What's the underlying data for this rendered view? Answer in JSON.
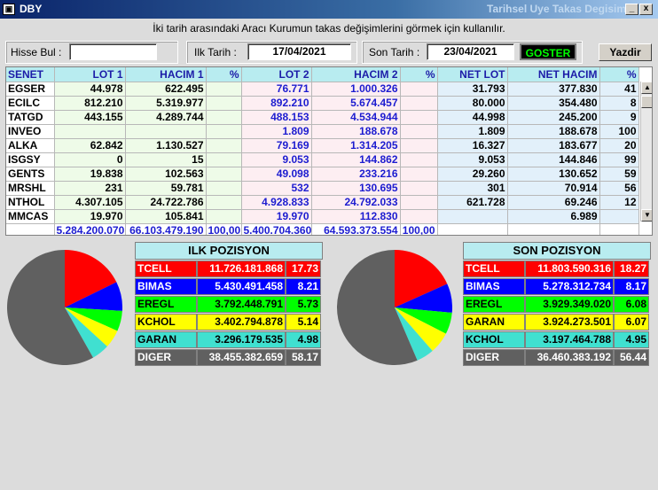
{
  "window": {
    "icon": "app-icon",
    "title": "DBY",
    "right_title": "Tarihsel Uye Takas Degisim",
    "minimize_label": "_",
    "close_label": "x"
  },
  "info_text": "İki tarih arasındaki  Aracı Kurumun takas değişimlerini görmek için kullanılır.",
  "filters": {
    "hisse_label": "Hisse Bul :",
    "hisse_value": "",
    "ilk_label": "Ilk Tarih :",
    "ilk_value": "17/04/2021",
    "son_label": "Son Tarih :",
    "son_value": "23/04/2021",
    "goster_label": "GOSTER",
    "yazdir_label": "Yazdir"
  },
  "grid": {
    "headers": [
      "SENET",
      "LOT 1",
      "HACIM 1",
      "%",
      "LOT 2",
      "HACIM 2",
      "%",
      "NET LOT",
      "NET HACIM",
      "%"
    ],
    "rows": [
      [
        "EGSER",
        "44.978",
        "622.495",
        "",
        "76.771",
        "1.000.326",
        "",
        "31.793",
        "377.830",
        "41"
      ],
      [
        "ECILC",
        "812.210",
        "5.319.977",
        "",
        "892.210",
        "5.674.457",
        "",
        "80.000",
        "354.480",
        "8"
      ],
      [
        "TATGD",
        "443.155",
        "4.289.744",
        "",
        "488.153",
        "4.534.944",
        "",
        "44.998",
        "245.200",
        "9"
      ],
      [
        "INVEO",
        "",
        "",
        "",
        "1.809",
        "188.678",
        "",
        "1.809",
        "188.678",
        "100"
      ],
      [
        "ALKA",
        "62.842",
        "1.130.527",
        "",
        "79.169",
        "1.314.205",
        "",
        "16.327",
        "183.677",
        "20"
      ],
      [
        "ISGSY",
        "0",
        "15",
        "",
        "9.053",
        "144.862",
        "",
        "9.053",
        "144.846",
        "99"
      ],
      [
        "GENTS",
        "19.838",
        "102.563",
        "",
        "49.098",
        "233.216",
        "",
        "29.260",
        "130.652",
        "59"
      ],
      [
        "MRSHL",
        "231",
        "59.781",
        "",
        "532",
        "130.695",
        "",
        "301",
        "70.914",
        "56"
      ],
      [
        "NTHOL",
        "4.307.105",
        "24.722.786",
        "",
        "4.928.833",
        "24.792.033",
        "",
        "621.728",
        "69.246",
        "12"
      ],
      [
        "MMCAS",
        "19.970",
        "105.841",
        "",
        "19.970",
        "112.830",
        "",
        "",
        "6.989",
        ""
      ]
    ],
    "totals": [
      "",
      "5.284.200.070",
      "66.103.479.190",
      "100,00",
      "5.400.704.360",
      "64.593.373.554",
      "100,00",
      "",
      "",
      ""
    ]
  },
  "ilk_pozisyon": {
    "title": "ILK POZISYON",
    "rows": [
      {
        "name": "TCELL",
        "value": "11.726.181.868",
        "pct": "17.73",
        "color": "#ff0000",
        "text": "#ffffff"
      },
      {
        "name": "BIMAS",
        "value": "5.430.491.458",
        "pct": "8.21",
        "color": "#0000ff",
        "text": "#ffffff"
      },
      {
        "name": "EREGL",
        "value": "3.792.448.791",
        "pct": "5.73",
        "color": "#00ff00",
        "text": "#000000"
      },
      {
        "name": "KCHOL",
        "value": "3.402.794.878",
        "pct": "5.14",
        "color": "#ffff00",
        "text": "#000000"
      },
      {
        "name": "GARAN",
        "value": "3.296.179.535",
        "pct": "4.98",
        "color": "#40e0d0",
        "text": "#000000"
      },
      {
        "name": "DIGER",
        "value": "38.455.382.659",
        "pct": "58.17",
        "color": "#606060",
        "text": "#ffffff"
      }
    ]
  },
  "son_pozisyon": {
    "title": "SON POZISYON",
    "rows": [
      {
        "name": "TCELL",
        "value": "11.803.590.316",
        "pct": "18.27",
        "color": "#ff0000",
        "text": "#ffffff"
      },
      {
        "name": "BIMAS",
        "value": "5.278.312.734",
        "pct": "8.17",
        "color": "#0000ff",
        "text": "#ffffff"
      },
      {
        "name": "EREGL",
        "value": "3.929.349.020",
        "pct": "6.08",
        "color": "#00ff00",
        "text": "#000000"
      },
      {
        "name": "GARAN",
        "value": "3.924.273.501",
        "pct": "6.07",
        "color": "#ffff00",
        "text": "#000000"
      },
      {
        "name": "KCHOL",
        "value": "3.197.464.788",
        "pct": "4.95",
        "color": "#40e0d0",
        "text": "#000000"
      },
      {
        "name": "DIGER",
        "value": "36.460.383.192",
        "pct": "56.44",
        "color": "#606060",
        "text": "#ffffff"
      }
    ]
  },
  "chart_data": [
    {
      "type": "pie",
      "categories": [
        "TCELL",
        "BIMAS",
        "EREGL",
        "KCHOL",
        "GARAN",
        "DIGER"
      ],
      "values": [
        17.73,
        8.21,
        5.73,
        5.14,
        4.98,
        58.17
      ]
    },
    {
      "type": "pie",
      "categories": [
        "TCELL",
        "BIMAS",
        "EREGL",
        "GARAN",
        "KCHOL",
        "DIGER"
      ],
      "values": [
        18.27,
        8.17,
        6.08,
        6.07,
        4.95,
        56.44
      ]
    }
  ]
}
